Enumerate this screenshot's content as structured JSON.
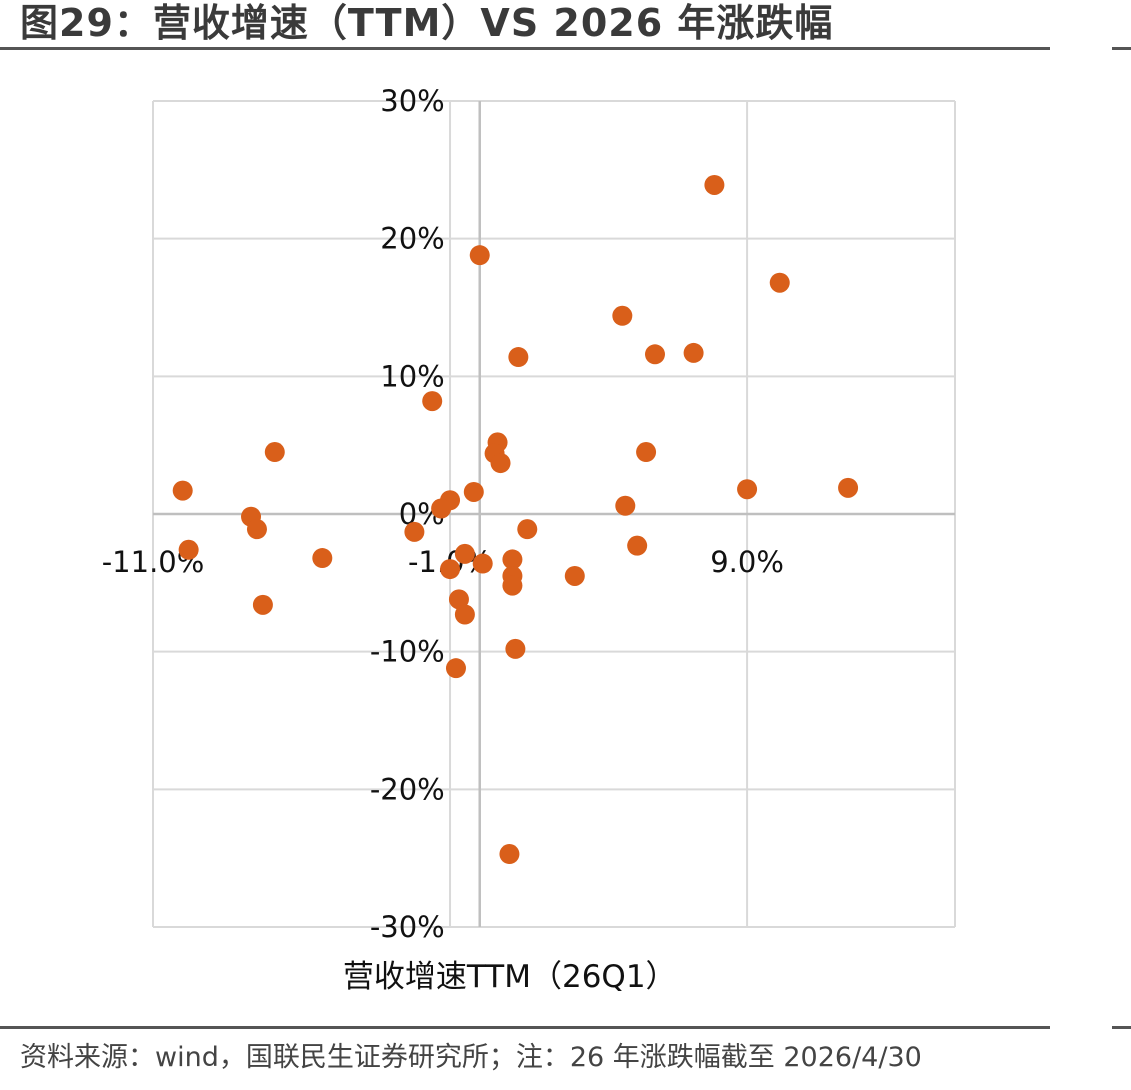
{
  "title": "图29：营收增速（TTM）VS 2026 年涨跌幅",
  "source": "资料来源：wind，国联民生证券研究所；注：26 年涨跌幅截至 2026/4/30",
  "chart_data": {
    "type": "scatter",
    "xlabel": "营收增速TTM（26Q1）",
    "ylabel": "",
    "xlim": [
      -11,
      16
    ],
    "ylim": [
      -30,
      30
    ],
    "x_ticks": [
      {
        "value": -11,
        "label": "-11.0%"
      },
      {
        "value": -1,
        "label": "-1.0%"
      },
      {
        "value": 9,
        "label": "9.0%"
      }
    ],
    "y_ticks": [
      {
        "value": 30,
        "label": "30%"
      },
      {
        "value": 20,
        "label": "20%"
      },
      {
        "value": 10,
        "label": "10%"
      },
      {
        "value": 0,
        "label": "0%"
      },
      {
        "value": -10,
        "label": "-10%"
      },
      {
        "value": -20,
        "label": "-20%"
      },
      {
        "value": -30,
        "label": "-30%"
      }
    ],
    "grid": true,
    "legend": "none",
    "color": "#D95F1A",
    "points": [
      {
        "x": 7.9,
        "y": 23.9
      },
      {
        "x": 0.0,
        "y": 18.8
      },
      {
        "x": 10.1,
        "y": 16.8
      },
      {
        "x": 4.8,
        "y": 14.4
      },
      {
        "x": 1.3,
        "y": 11.4
      },
      {
        "x": 5.9,
        "y": 11.6
      },
      {
        "x": 7.2,
        "y": 11.7
      },
      {
        "x": -1.6,
        "y": 8.2
      },
      {
        "x": 0.6,
        "y": 5.2
      },
      {
        "x": 0.5,
        "y": 4.4
      },
      {
        "x": 0.7,
        "y": 3.7
      },
      {
        "x": 5.6,
        "y": 4.5
      },
      {
        "x": -6.9,
        "y": 4.5
      },
      {
        "x": -10.0,
        "y": 1.7
      },
      {
        "x": -0.2,
        "y": 1.6
      },
      {
        "x": -1.0,
        "y": 1.0
      },
      {
        "x": -1.3,
        "y": 0.4
      },
      {
        "x": 4.9,
        "y": 0.6
      },
      {
        "x": 9.0,
        "y": 1.8
      },
      {
        "x": 12.4,
        "y": 1.9
      },
      {
        "x": -7.7,
        "y": -0.2
      },
      {
        "x": -7.5,
        "y": -1.1
      },
      {
        "x": 1.6,
        "y": -1.1
      },
      {
        "x": -2.2,
        "y": -1.3
      },
      {
        "x": -9.8,
        "y": -2.6
      },
      {
        "x": 5.3,
        "y": -2.3
      },
      {
        "x": -5.3,
        "y": -3.2
      },
      {
        "x": -0.5,
        "y": -2.9
      },
      {
        "x": 0.1,
        "y": -3.6
      },
      {
        "x": 1.1,
        "y": -3.3
      },
      {
        "x": -1.0,
        "y": -4.0
      },
      {
        "x": 1.1,
        "y": -4.5
      },
      {
        "x": 3.2,
        "y": -4.5
      },
      {
        "x": 1.1,
        "y": -5.2
      },
      {
        "x": -0.7,
        "y": -6.2
      },
      {
        "x": -0.5,
        "y": -7.3
      },
      {
        "x": -7.3,
        "y": -6.6
      },
      {
        "x": 1.2,
        "y": -9.8
      },
      {
        "x": -0.8,
        "y": -11.2
      },
      {
        "x": 1.0,
        "y": -24.7
      }
    ]
  }
}
